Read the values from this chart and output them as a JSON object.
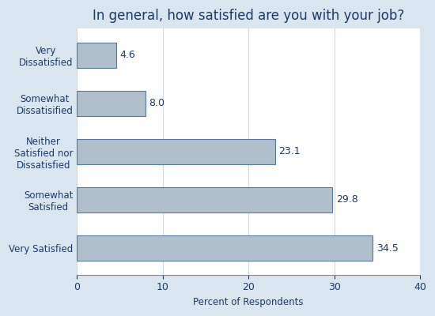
{
  "title": "In general, how satisfied are you with your job?",
  "categories": [
    "Very Satisfied",
    "Somewhat\nSatisfied",
    "Neither\nSatisfied nor\nDissatisfied",
    "Somewhat\nDissatisified",
    "Very\nDissatisfied"
  ],
  "values": [
    34.5,
    29.8,
    23.1,
    8.0,
    4.6
  ],
  "bar_color": "#b0bfcc",
  "bar_edge_color": "#5577a0",
  "xlabel": "Percent of Respondents",
  "xlim": [
    0,
    40
  ],
  "xticks": [
    0,
    10,
    20,
    30,
    40
  ],
  "background_color": "#d9e6f0",
  "plot_background_color": "#ffffff",
  "title_color": "#1a3a6a",
  "label_color": "#1a3a6a",
  "axis_color": "#888888",
  "grid_color": "#d0d8e0",
  "title_fontsize": 12,
  "label_fontsize": 8.5,
  "tick_fontsize": 9,
  "value_fontsize": 9,
  "bar_height": 0.52
}
